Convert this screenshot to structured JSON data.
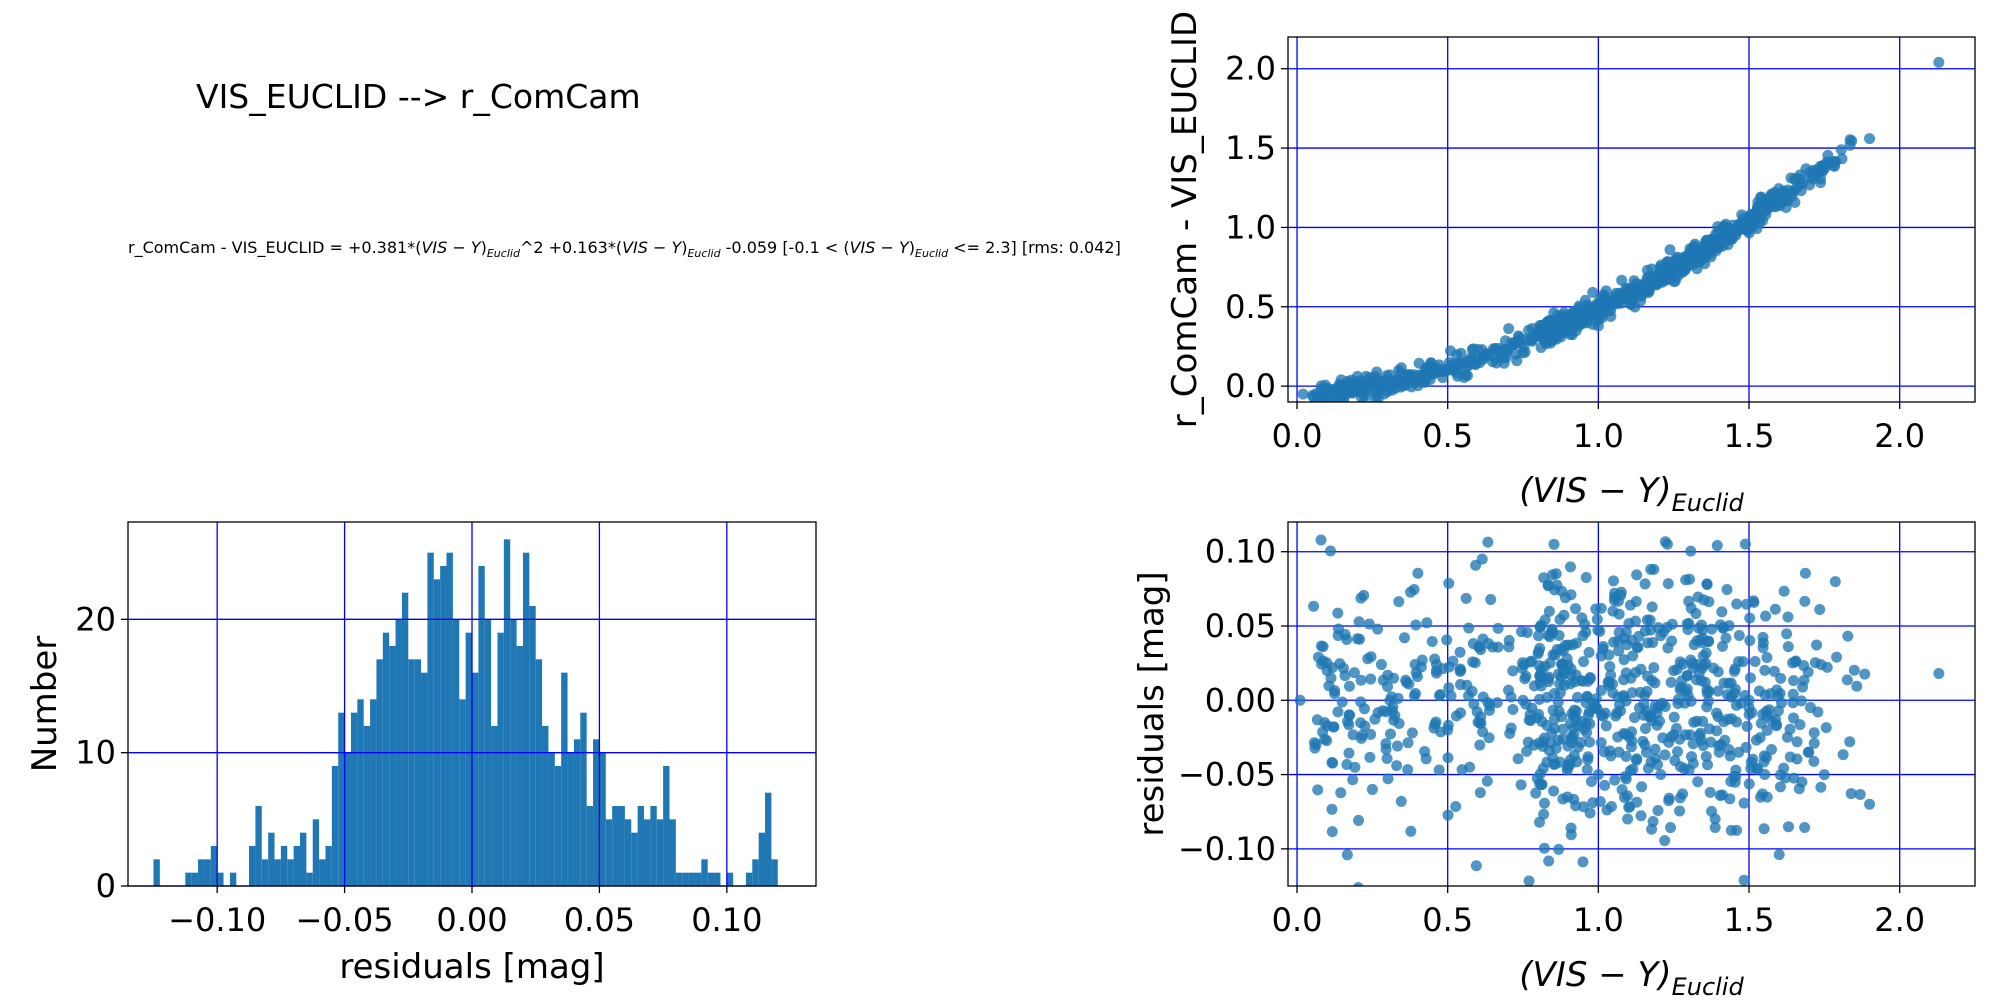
{
  "figure": {
    "title": "VIS_EUCLID --> r_ComCam",
    "equation": {
      "prefix": "r_ComCam - VIS_EUCLID = +0.381*(",
      "color_main": "VIS − Y",
      "color_sub": "Euclid",
      "sq": "^2 +0.163*(",
      "const": " -0.059  [-0.1 < (",
      "range_end": " <= 2.3]  [rms: 0.042]"
    }
  },
  "chart_data": [
    {
      "id": "color-relation",
      "type": "scatter",
      "xlabel_main": "(VIS − Y)",
      "xlabel_sub": "Euclid",
      "ylabel": "r_ComCam - VIS_EUCLID",
      "xlim": [
        -0.03,
        2.25
      ],
      "ylim": [
        -0.1,
        2.2
      ],
      "xticks": [
        0.0,
        0.5,
        1.0,
        1.5,
        2.0
      ],
      "yticks": [
        0.0,
        0.5,
        1.0,
        1.5,
        2.0
      ],
      "fit": {
        "a2": 0.381,
        "a1": 0.163,
        "a0": -0.059,
        "range": [
          -0.1,
          2.3
        ]
      },
      "points_sample": [
        [
          0.02,
          -0.05
        ],
        [
          0.12,
          -0.02
        ],
        [
          0.3,
          0.0
        ],
        [
          0.5,
          0.1
        ],
        [
          0.75,
          0.21
        ],
        [
          1.0,
          0.38
        ],
        [
          1.25,
          0.66
        ],
        [
          1.5,
          1.0
        ],
        [
          1.75,
          1.37
        ],
        [
          1.9,
          1.56
        ],
        [
          2.13,
          2.04
        ]
      ],
      "grid": true,
      "color": "#1f77b4"
    },
    {
      "id": "residual-histogram",
      "type": "bar",
      "xlabel": "residuals [mag]",
      "ylabel": "Number",
      "xlim": [
        -0.135,
        0.135
      ],
      "ylim": [
        0,
        27.3
      ],
      "xticks": [
        -0.1,
        -0.05,
        0.0,
        0.05,
        0.1
      ],
      "xtick_labels": [
        "−0.10",
        "−0.05",
        "0.00",
        "0.05",
        "0.10"
      ],
      "yticks": [
        0,
        10,
        20
      ],
      "bin_start": -0.125,
      "bin_width": 0.0025,
      "counts": [
        2,
        0,
        0,
        0,
        0,
        1,
        1,
        2,
        2,
        3,
        1,
        0,
        1,
        0,
        0,
        3,
        6,
        2,
        4,
        2,
        3,
        2,
        3,
        4,
        1,
        5,
        2,
        3,
        9,
        13,
        10,
        13,
        14,
        12,
        14,
        17,
        19,
        18,
        20,
        22,
        17,
        17,
        16,
        25,
        23,
        24,
        25,
        20,
        14,
        19,
        16,
        24,
        20,
        12,
        19,
        26,
        20,
        18,
        25,
        21,
        17,
        12,
        10,
        9,
        16,
        10,
        11,
        13,
        6,
        11,
        10,
        5,
        6,
        6,
        5,
        4,
        6,
        5,
        6,
        5,
        9,
        5,
        1,
        1,
        1,
        1,
        2,
        1,
        1,
        0,
        1,
        0,
        0,
        1,
        2,
        4,
        7,
        2
      ],
      "grid": true,
      "color": "#1f77b4"
    },
    {
      "id": "residuals-vs-color",
      "type": "scatter",
      "xlabel_main": "(VIS − Y)",
      "xlabel_sub": "Euclid",
      "ylabel": "residuals [mag]",
      "xlim": [
        -0.03,
        2.25
      ],
      "ylim": [
        -0.125,
        0.12
      ],
      "xticks": [
        0.0,
        0.5,
        1.0,
        1.5,
        2.0
      ],
      "yticks": [
        0.1,
        0.05,
        0.0,
        -0.05,
        -0.1
      ],
      "ytick_labels": [
        "0.10",
        "0.05",
        "0.00",
        "−0.05",
        "−0.10"
      ],
      "points_sample": [
        [
          0.01,
          0.0
        ],
        [
          0.1,
          0.02
        ],
        [
          0.25,
          -0.06
        ],
        [
          0.5,
          -0.02
        ],
        [
          0.75,
          0.0
        ],
        [
          1.0,
          -0.05
        ],
        [
          1.25,
          0.02
        ],
        [
          1.5,
          0.0
        ],
        [
          1.75,
          -0.05
        ],
        [
          1.9,
          -0.07
        ],
        [
          2.13,
          0.018
        ]
      ],
      "grid": true,
      "color": "#1f77b4"
    }
  ]
}
